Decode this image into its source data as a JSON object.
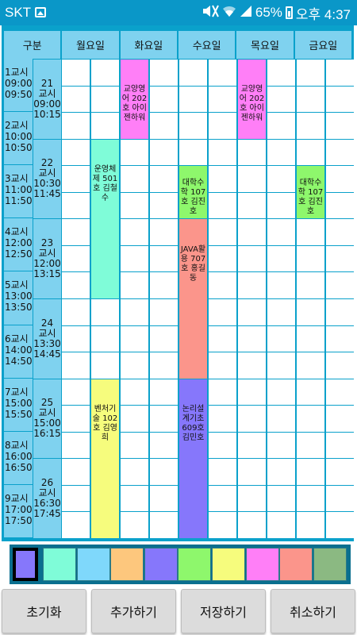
{
  "status": {
    "carrier": "SKT",
    "battery_percent": "65%",
    "time": "오후 4:37"
  },
  "header": [
    "구분",
    "월요일",
    "화요일",
    "수요일",
    "목요일",
    "금요일"
  ],
  "periods": [
    {
      "label": "1교시",
      "start": "09:00",
      "end": "09:50"
    },
    {
      "label": "2교시",
      "start": "10:00",
      "end": "10:50"
    },
    {
      "label": "3교시",
      "start": "11:00",
      "end": "11:50"
    },
    {
      "label": "4교시",
      "start": "12:00",
      "end": "12:50"
    },
    {
      "label": "5교시",
      "start": "13:00",
      "end": "13:50"
    },
    {
      "label": "6교시",
      "start": "14:00",
      "end": "14:50"
    },
    {
      "label": "7교시",
      "start": "15:00",
      "end": "15:50"
    },
    {
      "label": "8교시",
      "start": "16:00",
      "end": "16:50"
    },
    {
      "label": "9교시",
      "start": "17:00",
      "end": "17:50"
    }
  ],
  "slots": [
    {
      "num": "21",
      "label": "교시",
      "start": "09:00",
      "end": "10:15"
    },
    {
      "num": "22",
      "label": "교시",
      "start": "10:30",
      "end": "11:45"
    },
    {
      "num": "23",
      "label": "교시",
      "start": "12:00",
      "end": "13:15"
    },
    {
      "num": "24",
      "label": "교시",
      "start": "13:30",
      "end": "14:45"
    },
    {
      "num": "25",
      "label": "교시",
      "start": "15:00",
      "end": "16:15"
    },
    {
      "num": "26",
      "label": "교시",
      "start": "16:30",
      "end": "17:45"
    }
  ],
  "events": [
    {
      "day": "화요일",
      "text": "교양영어 202호 아이젠하워",
      "color": "#ff7ff7"
    },
    {
      "day": "목요일",
      "text": "교양영어 202호 아이젠하워",
      "color": "#ff7ff7"
    },
    {
      "day": "월요일",
      "text": "운영체제 501호 김철수",
      "color": "#7ffcd8"
    },
    {
      "day": "수요일",
      "text": "대학수학 107호 김진호",
      "color": "#8ef76c"
    },
    {
      "day": "금요일",
      "text": "대학수학 107호 김진호",
      "color": "#8ef76c"
    },
    {
      "day": "수요일",
      "text": "JAVA활용 707호 홍길동",
      "color": "#fb958b"
    },
    {
      "day": "월요일",
      "text": "벤처기술 102호 김영희",
      "color": "#f6fc7d"
    },
    {
      "day": "수요일",
      "text": "논리설계기초 609호 김민호",
      "color": "#8677fb"
    }
  ],
  "palette": {
    "selected": "#8677fb",
    "colors": [
      "#7ffcd8",
      "#7fd8fb",
      "#fdc77d",
      "#8677fb",
      "#8ef76c",
      "#f6fc7d",
      "#ff7ff7",
      "#fb958b",
      "#8bb982"
    ]
  },
  "buttons": {
    "reset": "초기화",
    "add": "추가하기",
    "save": "저장하기",
    "cancel": "취소하기"
  }
}
